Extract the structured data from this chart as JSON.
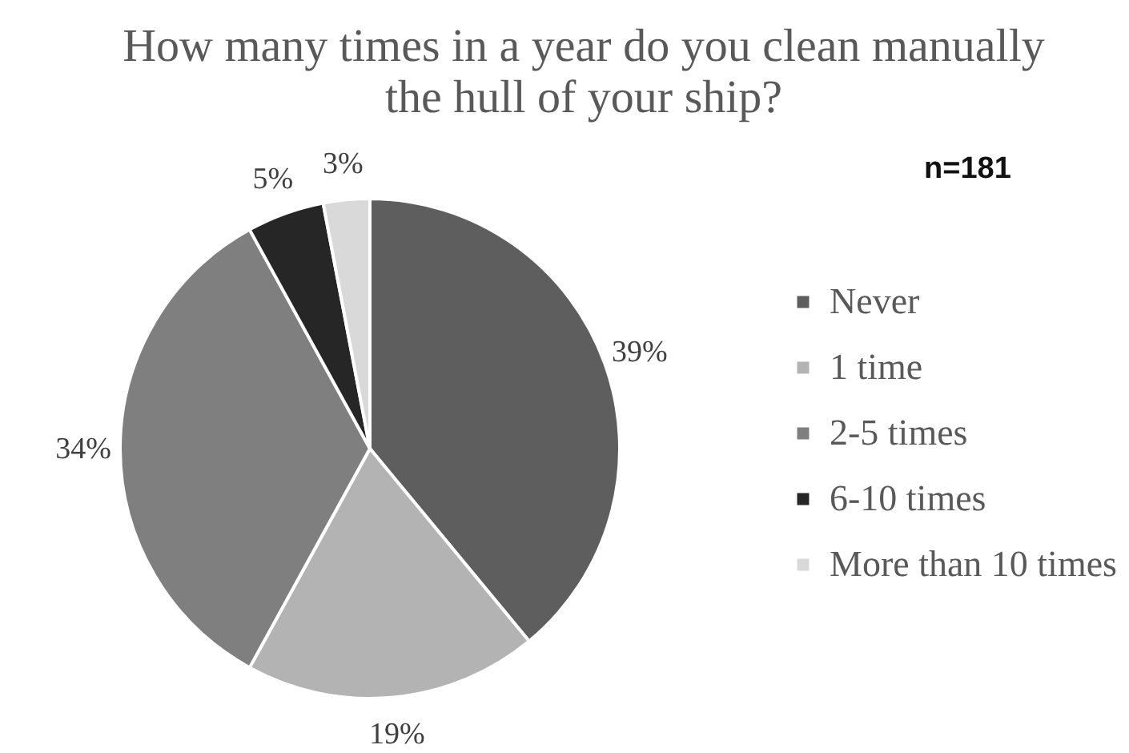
{
  "chart_data": {
    "type": "pie",
    "title": "How many times in a year do you clean manually the hull of your ship?",
    "categories": [
      "Never",
      "1 time",
      "2-5 times",
      "6-10 times",
      "More than 10 times"
    ],
    "values": [
      39,
      19,
      34,
      5,
      3
    ],
    "value_labels": [
      "39%",
      "19%",
      "34%",
      "5%",
      "3%"
    ],
    "colors": [
      "#5e5e5e",
      "#b3b3b3",
      "#7f7f7f",
      "#262626",
      "#d9d9d9"
    ],
    "legend": "right",
    "annotations": [
      "n=181"
    ]
  }
}
